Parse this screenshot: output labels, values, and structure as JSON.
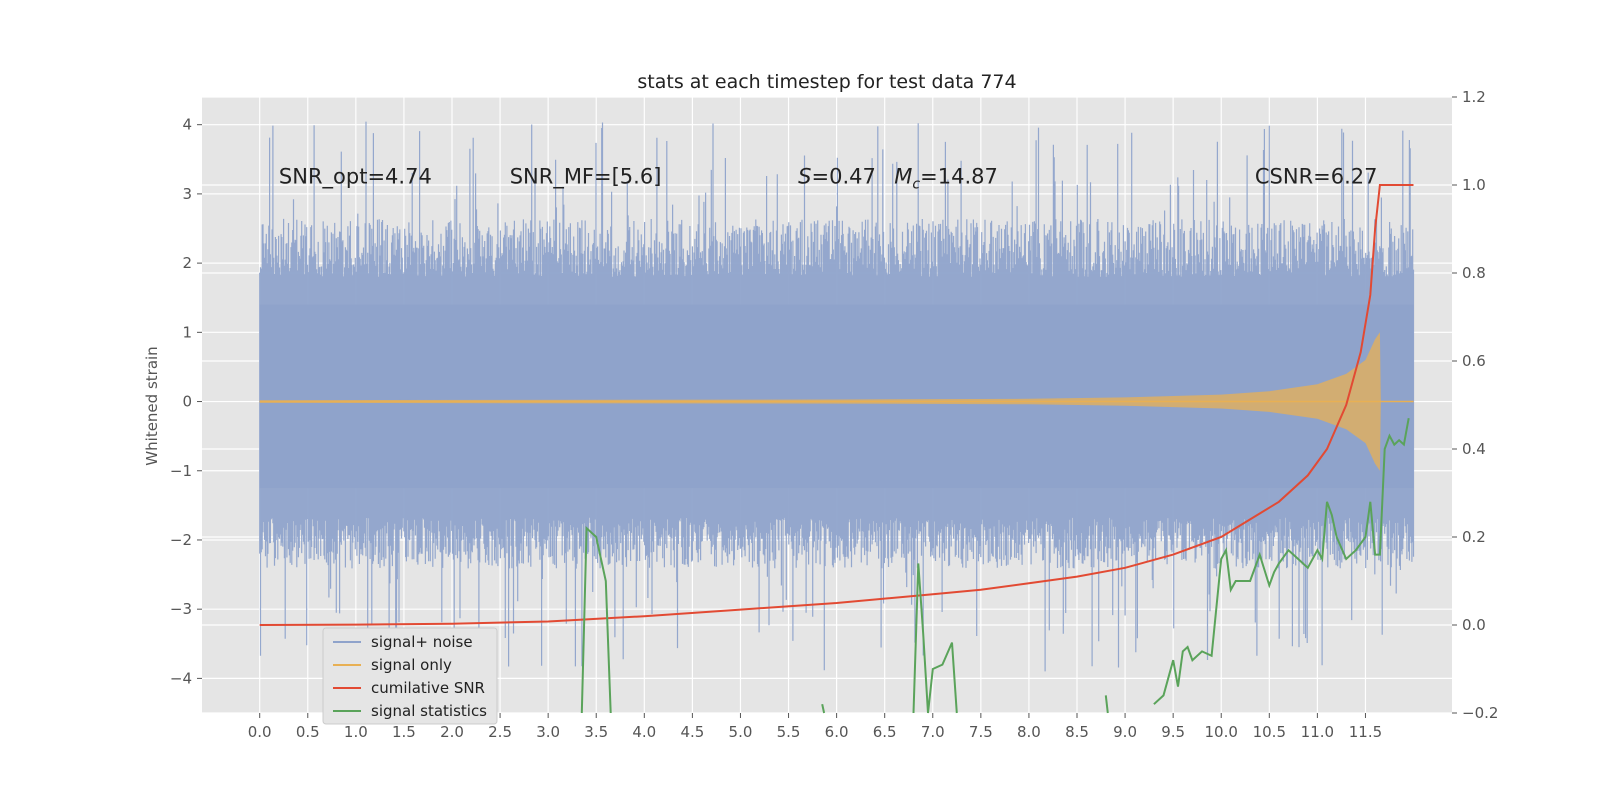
{
  "chart_data": {
    "type": "line",
    "title": "stats at each timestep for test data 774",
    "ylabel": "Whitened strain",
    "xlabel": "",
    "xlim": [
      -0.6,
      12.4
    ],
    "ylim": [
      -4.5,
      4.4
    ],
    "ylim_right": [
      -0.2,
      1.2
    ],
    "x_ticks": [
      "0.0",
      "0.5",
      "1.0",
      "1.5",
      "2.0",
      "2.5",
      "3.0",
      "3.5",
      "4.0",
      "4.5",
      "5.0",
      "5.5",
      "6.0",
      "6.5",
      "7.0",
      "7.5",
      "8.0",
      "8.5",
      "9.0",
      "9.5",
      "10.0",
      "10.5",
      "11.0",
      "11.5"
    ],
    "y_ticks": [
      4,
      3,
      2,
      1,
      0,
      -1,
      -2,
      -3,
      -4
    ],
    "y_ticks_right": [
      "1.2",
      "1.0",
      "0.8",
      "0.6",
      "0.4",
      "0.2",
      "0.0",
      "−0.2"
    ],
    "grid": true,
    "background": "#e5e5e5",
    "legend": {
      "placement": "lower-left",
      "entries": [
        "signal+ noise",
        "signal only",
        "cumilative SNR",
        "signal statistics"
      ]
    },
    "annotations": [
      {
        "text": "SNR_opt=4.74",
        "x": 0.2,
        "y": 3.15
      },
      {
        "text": "SNR_MF=[5.6]",
        "x": 2.6,
        "y": 3.15
      },
      {
        "text": "S=0.47",
        "x": 5.6,
        "y": 3.15
      },
      {
        "text": "M_c=14.87",
        "x": 6.6,
        "y": 3.15
      },
      {
        "text": "CSNR=6.27",
        "x": 10.35,
        "y": 3.15
      }
    ],
    "series": [
      {
        "name": "signal+ noise",
        "axis": "left",
        "color": "#8fa3cb",
        "x_range": [
          0.0,
          12.0
        ],
        "typical_extent": [
          -2.1,
          2.4
        ],
        "extreme_extent": [
          -3.9,
          4.05
        ]
      },
      {
        "name": "signal only",
        "axis": "left",
        "color": "#e8b054",
        "x": [
          0.0,
          6.0,
          8.0,
          9.0,
          10.0,
          10.5,
          11.0,
          11.3,
          11.5,
          11.6,
          11.65,
          11.66
        ],
        "amplitude": [
          0.02,
          0.03,
          0.04,
          0.06,
          0.1,
          0.15,
          0.25,
          0.4,
          0.6,
          0.9,
          1.0,
          0.0
        ]
      },
      {
        "name": "cumilative SNR",
        "axis": "right",
        "color": "#e24a33",
        "x": [
          0.0,
          1.0,
          2.0,
          3.0,
          4.0,
          5.0,
          6.0,
          7.0,
          7.5,
          8.0,
          8.5,
          9.0,
          9.5,
          10.0,
          10.3,
          10.6,
          10.9,
          11.1,
          11.3,
          11.45,
          11.55,
          11.6,
          11.65,
          11.66,
          12.0
        ],
        "values": [
          0.0,
          0.001,
          0.003,
          0.008,
          0.02,
          0.035,
          0.05,
          0.07,
          0.08,
          0.095,
          0.11,
          0.13,
          0.16,
          0.2,
          0.24,
          0.28,
          0.34,
          0.4,
          0.5,
          0.62,
          0.75,
          0.9,
          1.0,
          1.0,
          1.0
        ]
      },
      {
        "name": "signal statistics",
        "axis": "right",
        "color": "#5aa35a",
        "x": [
          3.35,
          3.4,
          3.5,
          3.6,
          3.65,
          5.85,
          5.87,
          6.8,
          6.85,
          6.9,
          6.95,
          7.0,
          7.1,
          7.2,
          7.25,
          8.8,
          8.82,
          9.3,
          9.4,
          9.5,
          9.55,
          9.6,
          9.65,
          9.7,
          9.8,
          9.9,
          10.0,
          10.05,
          10.1,
          10.15,
          10.2,
          10.3,
          10.4,
          10.5,
          10.55,
          10.6,
          10.7,
          10.8,
          10.9,
          11.0,
          11.05,
          11.1,
          11.15,
          11.2,
          11.3,
          11.4,
          11.5,
          11.55,
          11.6,
          11.65,
          11.7,
          11.75,
          11.8,
          11.85,
          11.9,
          11.95
        ],
        "values": [
          -0.2,
          0.22,
          0.2,
          0.1,
          -0.2,
          -0.18,
          -0.2,
          -0.2,
          0.14,
          -0.02,
          -0.2,
          -0.1,
          -0.09,
          -0.04,
          -0.2,
          -0.16,
          -0.2,
          -0.18,
          -0.16,
          -0.08,
          -0.14,
          -0.06,
          -0.05,
          -0.08,
          -0.06,
          -0.07,
          0.15,
          0.17,
          0.08,
          0.1,
          0.1,
          0.1,
          0.16,
          0.09,
          0.12,
          0.14,
          0.17,
          0.15,
          0.13,
          0.17,
          0.15,
          0.28,
          0.25,
          0.2,
          0.15,
          0.17,
          0.2,
          0.28,
          0.16,
          0.16,
          0.4,
          0.43,
          0.41,
          0.42,
          0.41,
          0.47
        ]
      }
    ]
  }
}
